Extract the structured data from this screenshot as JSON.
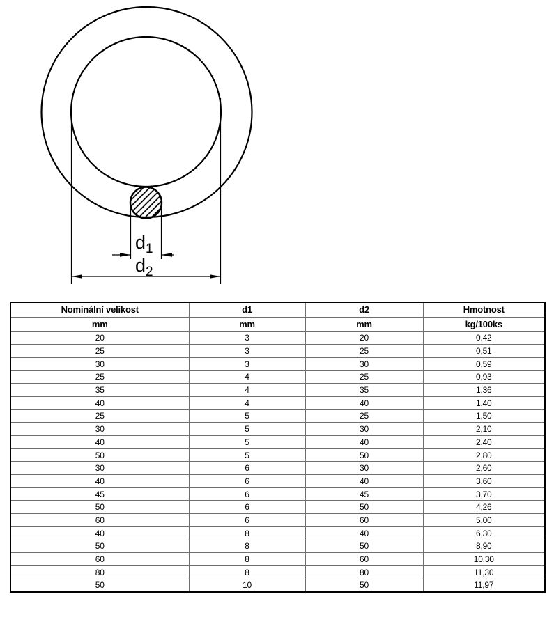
{
  "diagram": {
    "d1_label": {
      "base": "d",
      "sub": "1"
    },
    "d2_label": {
      "base": "d",
      "sub": "2"
    }
  },
  "table": {
    "headers": [
      "Nominální velikost",
      "d1",
      "d2",
      "Hmotnost"
    ],
    "units": [
      "mm",
      "mm",
      "mm",
      "kg/100ks"
    ],
    "rows": [
      [
        "20",
        "3",
        "20",
        "0,42"
      ],
      [
        "25",
        "3",
        "25",
        "0,51"
      ],
      [
        "30",
        "3",
        "30",
        "0,59"
      ],
      [
        "25",
        "4",
        "25",
        "0,93"
      ],
      [
        "35",
        "4",
        "35",
        "1,36"
      ],
      [
        "40",
        "4",
        "40",
        "1,40"
      ],
      [
        "25",
        "5",
        "25",
        "1,50"
      ],
      [
        "30",
        "5",
        "30",
        "2,10"
      ],
      [
        "40",
        "5",
        "40",
        "2,40"
      ],
      [
        "50",
        "5",
        "50",
        "2,80"
      ],
      [
        "30",
        "6",
        "30",
        "2,60"
      ],
      [
        "40",
        "6",
        "40",
        "3,60"
      ],
      [
        "45",
        "6",
        "45",
        "3,70"
      ],
      [
        "50",
        "6",
        "50",
        "4,26"
      ],
      [
        "60",
        "6",
        "60",
        "5,00"
      ],
      [
        "40",
        "8",
        "40",
        "6,30"
      ],
      [
        "50",
        "8",
        "50",
        "8,90"
      ],
      [
        "60",
        "8",
        "60",
        "10,30"
      ],
      [
        "80",
        "8",
        "80",
        "11,30"
      ],
      [
        "50",
        "10",
        "50",
        "11,97"
      ]
    ]
  },
  "colors": {
    "line": "#000000",
    "grid": "#6e6e6e",
    "text": "#000000",
    "background": "#ffffff"
  }
}
